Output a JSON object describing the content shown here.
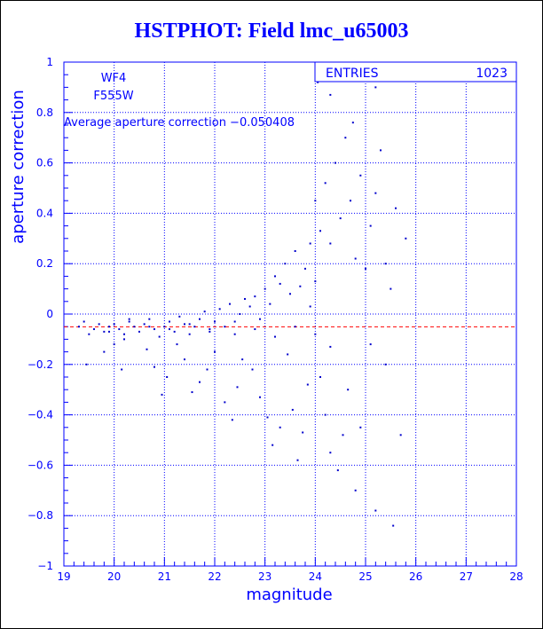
{
  "chart_data": {
    "type": "scatter",
    "title": "HSTPHOT: Field lmc_u65003",
    "xlabel": "magnitude",
    "ylabel": "aperture correction",
    "xlim": [
      19,
      28
    ],
    "ylim": [
      -1,
      1
    ],
    "x_ticks": [
      19,
      20,
      21,
      22,
      23,
      24,
      25,
      26,
      27,
      28
    ],
    "y_ticks": [
      -1,
      -0.8,
      -0.6,
      -0.4,
      -0.2,
      0,
      0.2,
      0.4,
      0.6,
      0.8,
      1
    ],
    "y_tick_labels": [
      "−1",
      "−0.8",
      "−0.6",
      "−0.4",
      "−0.2",
      "0",
      "0.2",
      "0.4",
      "0.6",
      "0.8",
      "1"
    ],
    "grid": true,
    "annotations": {
      "chip": "WF4",
      "filter": "F555W",
      "average_text": "Average aperture correction −0.050408"
    },
    "stats_box": {
      "label": "ENTRIES",
      "value": "1023"
    },
    "reference_line": {
      "y": -0.050408,
      "color": "#ff0000",
      "style": "dashed"
    },
    "series": [
      {
        "points": [
          [
            19.3,
            -0.05
          ],
          [
            19.4,
            -0.03
          ],
          [
            19.5,
            -0.08
          ],
          [
            19.6,
            -0.06
          ],
          [
            19.7,
            -0.04
          ],
          [
            19.8,
            -0.07
          ],
          [
            19.9,
            -0.05
          ],
          [
            20.0,
            -0.04
          ],
          [
            20.1,
            -0.06
          ],
          [
            20.2,
            -0.08
          ],
          [
            20.3,
            -0.03
          ],
          [
            20.4,
            -0.05
          ],
          [
            19.45,
            -0.2
          ],
          [
            19.8,
            -0.15
          ],
          [
            20.0,
            -0.12
          ],
          [
            20.2,
            -0.1
          ],
          [
            20.15,
            -0.22
          ],
          [
            20.5,
            -0.07
          ],
          [
            20.6,
            -0.04
          ],
          [
            20.7,
            -0.02
          ],
          [
            20.8,
            -0.06
          ],
          [
            20.9,
            -0.09
          ],
          [
            21.0,
            -0.05
          ],
          [
            21.1,
            -0.03
          ],
          [
            20.65,
            -0.14
          ],
          [
            20.8,
            -0.21
          ],
          [
            20.95,
            -0.32
          ],
          [
            21.05,
            -0.25
          ],
          [
            21.2,
            -0.07
          ],
          [
            21.3,
            -0.01
          ],
          [
            21.4,
            -0.04
          ],
          [
            21.5,
            -0.08
          ],
          [
            21.6,
            -0.05
          ],
          [
            21.7,
            -0.02
          ],
          [
            21.8,
            0.01
          ],
          [
            21.9,
            -0.06
          ],
          [
            21.25,
            -0.12
          ],
          [
            21.4,
            -0.18
          ],
          [
            21.55,
            -0.31
          ],
          [
            21.7,
            -0.27
          ],
          [
            21.85,
            -0.22
          ],
          [
            22.0,
            -0.03
          ],
          [
            22.1,
            0.02
          ],
          [
            22.2,
            -0.05
          ],
          [
            22.3,
            0.04
          ],
          [
            22.4,
            -0.08
          ],
          [
            22.5,
            0.0
          ],
          [
            22.6,
            0.06
          ],
          [
            22.0,
            -0.15
          ],
          [
            22.2,
            -0.35
          ],
          [
            22.35,
            -0.42
          ],
          [
            22.45,
            -0.29
          ],
          [
            22.55,
            -0.18
          ],
          [
            22.7,
            0.03
          ],
          [
            22.8,
            0.07
          ],
          [
            22.9,
            -0.02
          ],
          [
            23.0,
            0.1
          ],
          [
            23.1,
            0.04
          ],
          [
            23.2,
            0.15
          ],
          [
            23.3,
            0.12
          ],
          [
            22.75,
            -0.22
          ],
          [
            22.9,
            -0.33
          ],
          [
            23.05,
            -0.41
          ],
          [
            23.15,
            -0.52
          ],
          [
            23.3,
            -0.45
          ],
          [
            23.4,
            0.2
          ],
          [
            23.5,
            0.08
          ],
          [
            23.6,
            0.25
          ],
          [
            23.7,
            0.11
          ],
          [
            23.8,
            0.18
          ],
          [
            23.9,
            0.03
          ],
          [
            24.0,
            0.13
          ],
          [
            23.45,
            -0.16
          ],
          [
            23.55,
            -0.38
          ],
          [
            23.65,
            -0.58
          ],
          [
            23.75,
            -0.47
          ],
          [
            23.85,
            -0.28
          ],
          [
            23.9,
            0.28
          ],
          [
            24.0,
            0.45
          ],
          [
            24.1,
            0.33
          ],
          [
            24.2,
            0.52
          ],
          [
            24.3,
            0.28
          ],
          [
            24.4,
            0.6
          ],
          [
            24.5,
            0.38
          ],
          [
            24.1,
            -0.25
          ],
          [
            24.2,
            -0.4
          ],
          [
            24.3,
            -0.55
          ],
          [
            24.45,
            -0.62
          ],
          [
            24.55,
            -0.48
          ],
          [
            24.6,
            0.7
          ],
          [
            24.7,
            0.45
          ],
          [
            24.8,
            0.22
          ],
          [
            24.9,
            0.55
          ],
          [
            25.0,
            0.18
          ],
          [
            25.1,
            0.35
          ],
          [
            25.2,
            0.48
          ],
          [
            24.65,
            -0.3
          ],
          [
            24.8,
            -0.7
          ],
          [
            24.9,
            -0.45
          ],
          [
            25.1,
            -0.12
          ],
          [
            25.2,
            -0.78
          ],
          [
            25.3,
            0.65
          ],
          [
            25.4,
            0.2
          ],
          [
            25.5,
            0.1
          ],
          [
            25.6,
            0.42
          ],
          [
            25.8,
            0.3
          ],
          [
            25.7,
            -0.48
          ],
          [
            25.4,
            -0.2
          ],
          [
            24.05,
            0.92
          ],
          [
            24.3,
            0.87
          ],
          [
            24.75,
            0.76
          ],
          [
            25.05,
            0.95
          ],
          [
            25.2,
            0.9
          ],
          [
            25.55,
            -0.84
          ],
          [
            24.3,
            -0.13
          ],
          [
            24.0,
            -0.08
          ],
          [
            23.6,
            -0.05
          ],
          [
            23.2,
            -0.09
          ],
          [
            22.8,
            -0.06
          ],
          [
            22.4,
            -0.03
          ],
          [
            21.9,
            -0.07
          ],
          [
            21.5,
            -0.04
          ],
          [
            21.1,
            -0.06
          ],
          [
            20.7,
            -0.05
          ],
          [
            20.3,
            -0.02
          ],
          [
            19.9,
            -0.07
          ]
        ]
      }
    ]
  },
  "colors": {
    "axis": "#0000ff",
    "points": "#0000cc",
    "reference": "#ff0000",
    "title": "#0000ff"
  }
}
